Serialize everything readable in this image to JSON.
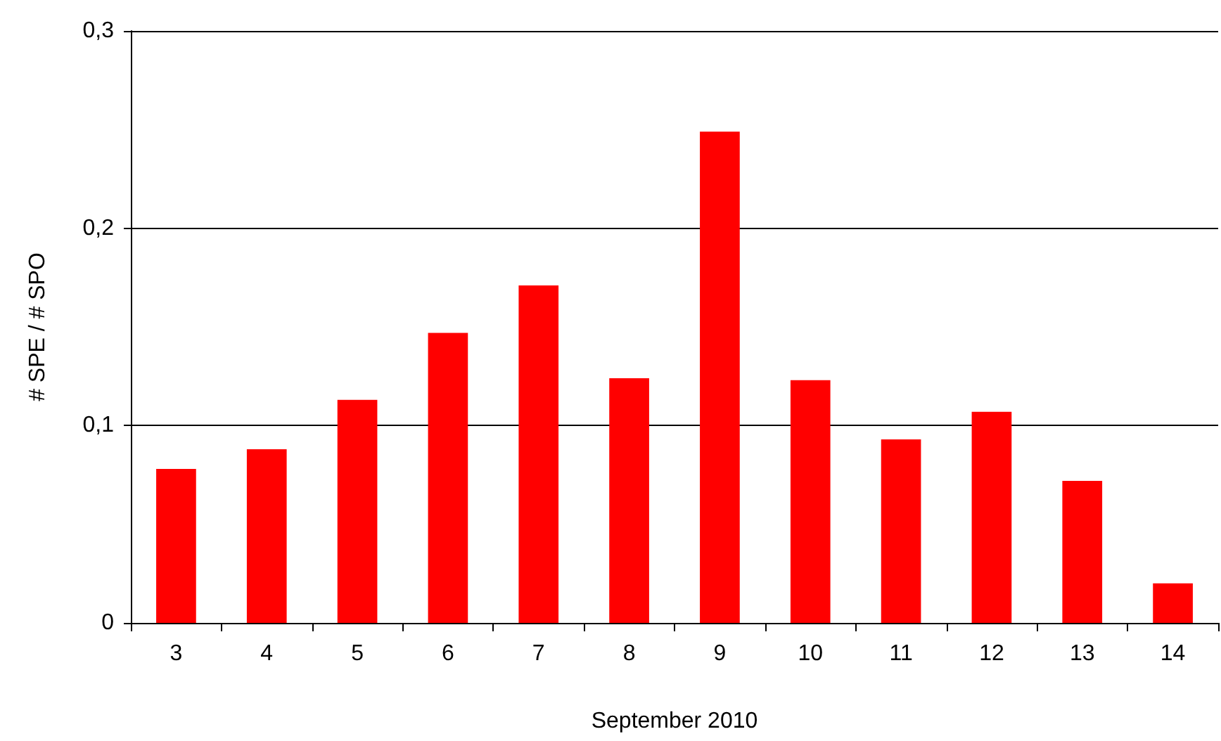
{
  "chart_data": {
    "type": "bar",
    "xlabel": "September 2010",
    "ylabel": "# SPE / # SPO",
    "categories": [
      "3",
      "4",
      "5",
      "6",
      "7",
      "8",
      "9",
      "10",
      "11",
      "12",
      "13",
      "14"
    ],
    "values": [
      0.078,
      0.088,
      0.113,
      0.147,
      0.171,
      0.124,
      0.249,
      0.123,
      0.093,
      0.107,
      0.072,
      0.02
    ],
    "color": "#ff0000",
    "ylim": [
      0,
      0.3
    ],
    "yticks": [
      0,
      {
        "value": 0.1,
        "label": "0,1"
      },
      {
        "value": 0.2,
        "label": "0,2"
      },
      {
        "value": 0.3,
        "label": "0,3"
      }
    ],
    "grid": "y"
  }
}
